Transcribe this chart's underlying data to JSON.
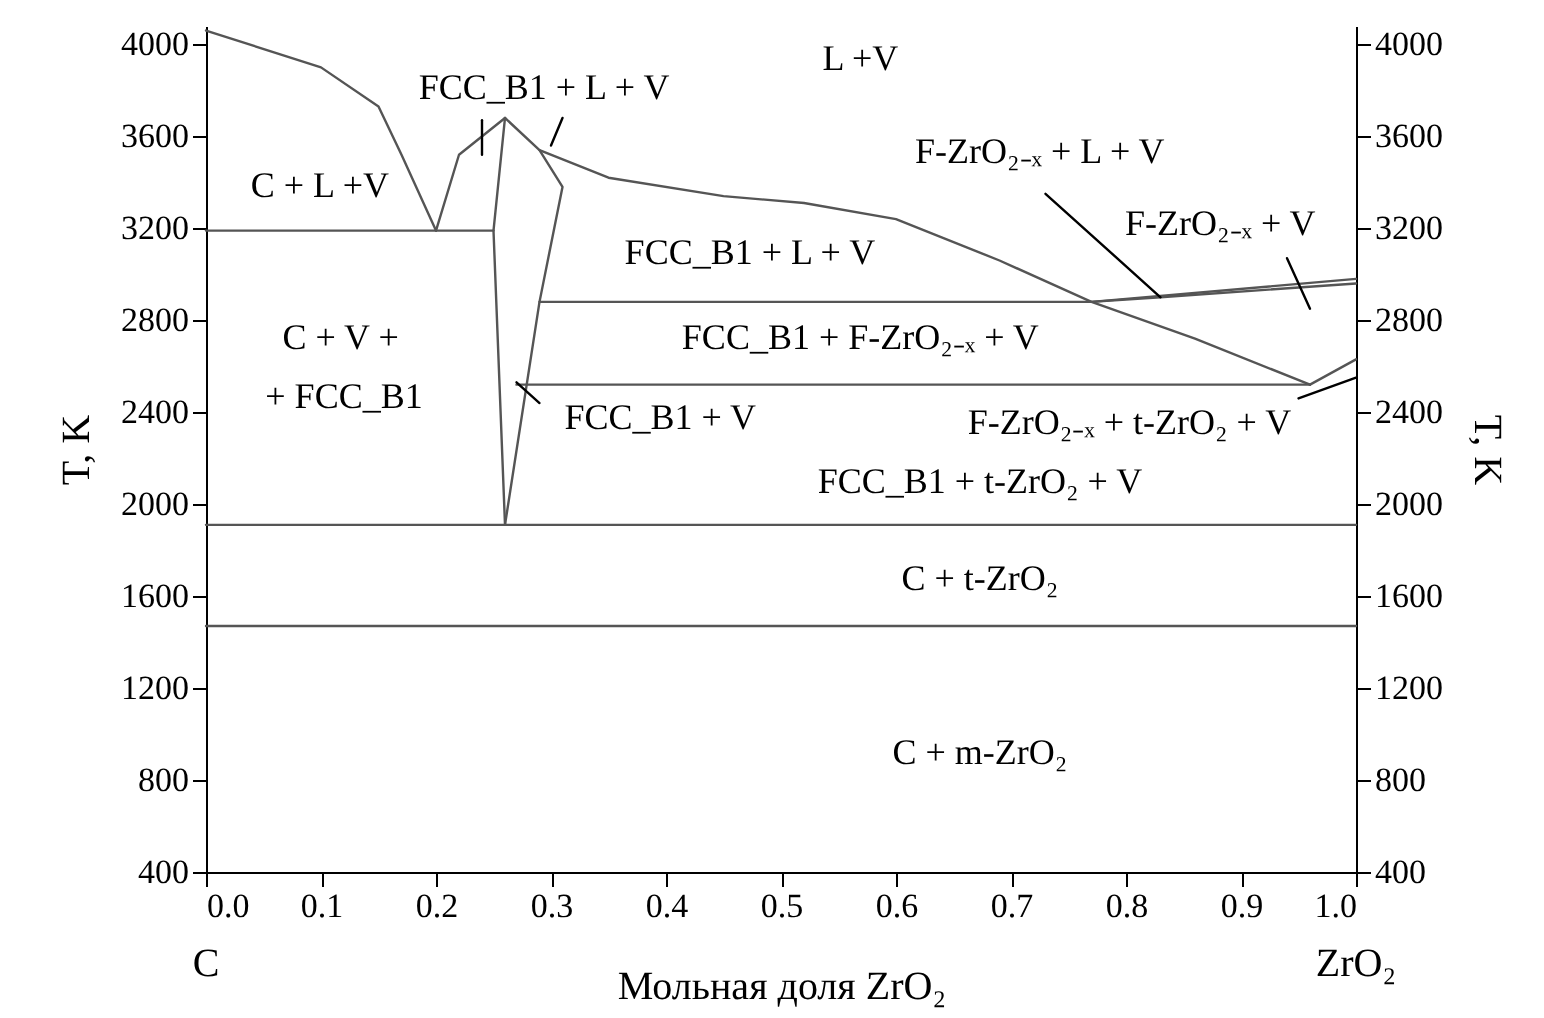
{
  "chart_data": {
    "type": "line",
    "xlabel": "Мольная доля ZrO₂",
    "ylabel": "T, K",
    "y2label": "T, K",
    "xlim": [
      0,
      1
    ],
    "xticks": [
      {
        "value": 0,
        "label": "0.0"
      },
      0.1,
      0.2,
      0.3,
      0.4,
      0.5,
      0.6,
      0.7,
      0.8,
      0.9,
      {
        "value": 1,
        "label": "1.0"
      }
    ],
    "ylim": [
      400,
      4080
    ],
    "yticks": [
      400,
      800,
      1200,
      1600,
      2000,
      2400,
      2800,
      3200,
      3600,
      4000
    ],
    "y2lim": [
      400,
      4080
    ],
    "y2ticks": [
      400,
      800,
      1200,
      1600,
      2000,
      2400,
      2800,
      3200,
      3600,
      4000
    ],
    "grid": false,
    "marker": "none",
    "line_style": "solid",
    "series": [
      {
        "color": "#555555",
        "x": [
          0,
          0.1,
          0.15,
          0.17,
          0.2
        ],
        "values": [
          4060,
          3900,
          3730,
          3520,
          3190
        ]
      },
      {
        "color": "#555555",
        "x": [
          0,
          0.25
        ],
        "values": [
          3190,
          3190
        ]
      },
      {
        "color": "#555555",
        "x": [
          0.2,
          0.22,
          0.26
        ],
        "values": [
          3190,
          3520,
          3680
        ]
      },
      {
        "color": "#555555",
        "x": [
          0.26,
          0.25,
          0.26
        ],
        "values": [
          3680,
          3190,
          1910
        ]
      },
      {
        "color": "#555555",
        "x": [
          0.26,
          0.29,
          0.31,
          0.29,
          0.26
        ],
        "values": [
          3680,
          3540,
          3380,
          2880,
          1910
        ]
      },
      {
        "color": "#555555",
        "x": [
          0.29,
          0.35,
          0.45,
          0.52,
          0.6,
          0.69,
          0.77,
          0.86,
          0.96
        ],
        "values": [
          3540,
          3420,
          3340,
          3310,
          3240,
          3060,
          2880,
          2720,
          2520
        ]
      },
      {
        "color": "#555555",
        "x": [
          0.29,
          0.77,
          1
        ],
        "values": [
          2880,
          2880,
          2980
        ]
      },
      {
        "color": "#555555",
        "x": [
          0.77,
          0.83,
          1
        ],
        "values": [
          2880,
          2900,
          2960
        ]
      },
      {
        "color": "#555555",
        "x": [
          0.27,
          0.96
        ],
        "values": [
          2520,
          2520
        ]
      },
      {
        "color": "#555555",
        "x": [
          0.96,
          1
        ],
        "values": [
          2520,
          2630
        ]
      },
      {
        "color": "#555555",
        "x": [
          0,
          1
        ],
        "values": [
          1910,
          1910
        ]
      },
      {
        "color": "#000000",
        "x": [
          0.24,
          0.24
        ],
        "values": [
          3670,
          3520
        ]
      },
      {
        "color": "#000000",
        "x": [
          0.31,
          0.3
        ],
        "values": [
          3680,
          3560
        ]
      },
      {
        "color": "#000000",
        "x": [
          0.27,
          0.29
        ],
        "values": [
          2530,
          2440
        ]
      },
      {
        "color": "#000000",
        "x": [
          0.73,
          0.83
        ],
        "values": [
          3350,
          2900
        ]
      },
      {
        "color": "#000000",
        "x": [
          0.94,
          0.96
        ],
        "values": [
          3070,
          2850
        ]
      },
      {
        "color": "#000000",
        "x": [
          0.95,
          1
        ],
        "values": [
          2460,
          2550
        ]
      },
      {
        "color": "#555555",
        "x": [
          0,
          1
        ],
        "values": [
          1470,
          1470
        ],
        "axis": "y2"
      }
    ],
    "annotations": [
      "L +V",
      "FCC_B1 + L + V",
      "C + L +V",
      "F-ZrO₂₋ₓ + L + V",
      "F-ZrO₂₋ₓ + V",
      "FCC_B1 + L + V",
      "C + V +",
      "+ FCC_B1",
      "FCC_B1 + F-ZrO₂₋ₓ + V",
      "FCC_B1 + V",
      "F-ZrO₂₋ₓ + t-ZrO₂ + V",
      "FCC_B1 + t-ZrO₂ + V",
      "C + t-ZrO₂",
      "C + m-ZrO₂",
      "C",
      "ZrO₂"
    ]
  }
}
